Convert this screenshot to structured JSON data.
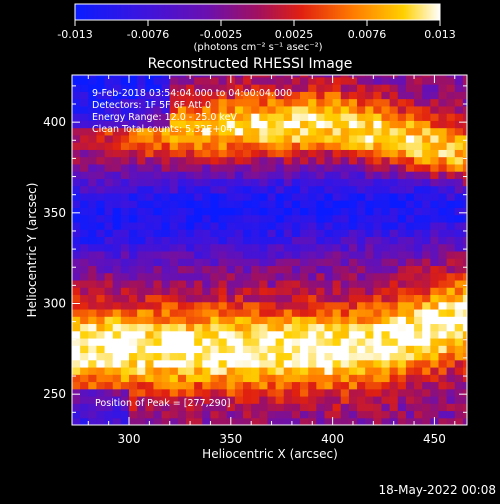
{
  "colorbar": {
    "tick_labels": [
      "-0.013",
      "-0.0076",
      "-0.0025",
      "0.0025",
      "0.0076",
      "0.013"
    ],
    "units_label": "(photons cm⁻² s⁻¹ asec⁻²)",
    "range": [
      -0.013,
      0.013
    ]
  },
  "annotations": {
    "time_range": "9-Feb-2018 03:54:04.000 to 04:00:04.000",
    "detectors": "Detectors: 1F 5F 6F Att 0",
    "energy": "Energy Range: 12.0 - 25.0 keV",
    "method": "Clean     Total counts: 5.32E+04",
    "peak": "Position of Peak = [277,290]"
  },
  "timestamp": "18-May-2022 00:08",
  "chart_data": {
    "type": "heatmap",
    "title": "Reconstructed RHESSI Image",
    "xlabel": "Heliocentric X (arcsec)",
    "ylabel": "Heliocentric Y (arcsec)",
    "xlim": [
      272,
      466
    ],
    "ylim": [
      233,
      426
    ],
    "xticks": [
      300,
      350,
      400,
      450
    ],
    "yticks": [
      250,
      300,
      350,
      400
    ],
    "colormap": "blue-purple-red-yellow-white",
    "colors": {
      "stops": [
        "#0a1cff",
        "#5a10c8",
        "#8a0ea0",
        "#d01a18",
        "#ff6a00",
        "#ffd200",
        "#ffffff"
      ]
    },
    "pixel_size_arcsec": 4,
    "structure": "diagonal bright (positive) bands in upper-right and lower-center, dark (negative) band across middle-left"
  }
}
